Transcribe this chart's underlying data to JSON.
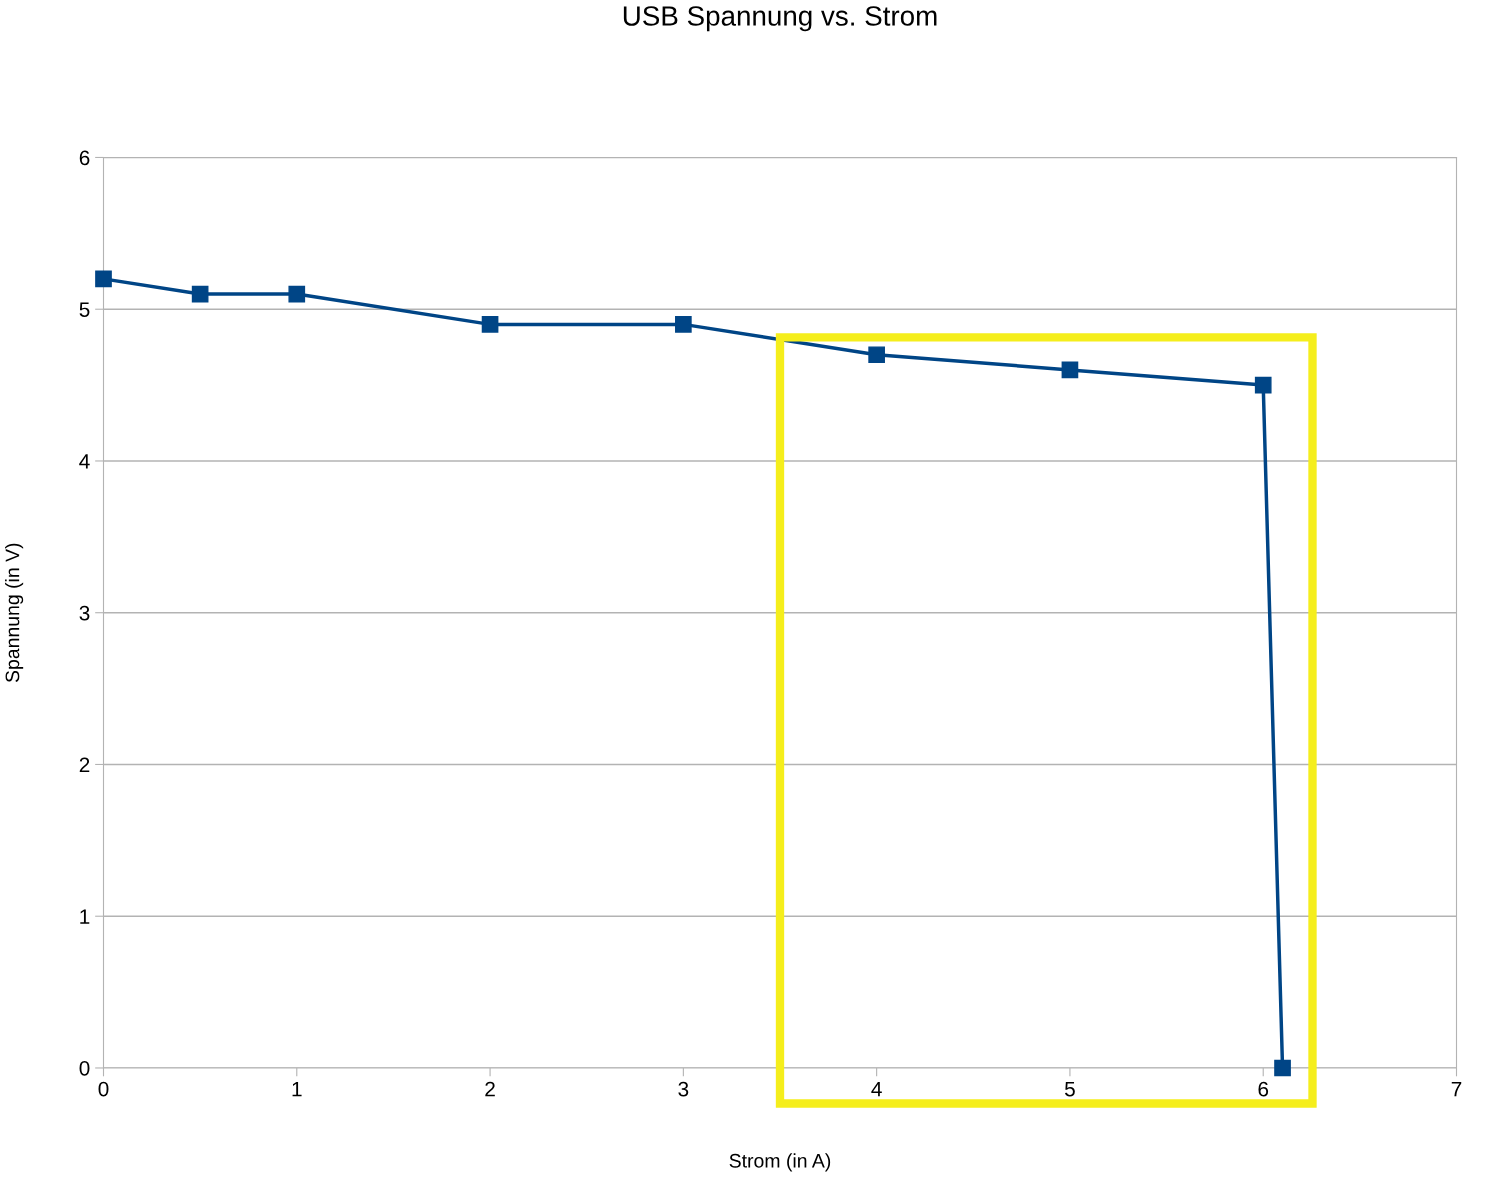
{
  "chart_data": {
    "type": "line",
    "title": "USB Spannung vs. Strom",
    "xlabel": "Strom (in A)",
    "ylabel": "Spannung (in V)",
    "x": [
      0,
      0.5,
      1,
      2,
      3,
      4,
      5,
      6,
      6.1
    ],
    "series": [
      {
        "color": "#004586",
        "values": [
          5.2,
          5.1,
          5.1,
          4.9,
          4.9,
          4.7,
          4.6,
          4.5,
          0
        ]
      }
    ],
    "xlim": [
      0,
      7
    ],
    "xticks": [
      0,
      1,
      2,
      3,
      4,
      5,
      6,
      7
    ],
    "ylim": [
      0,
      6
    ],
    "yticks": [
      0,
      1,
      2,
      3,
      4,
      5,
      6
    ],
    "grid": "y",
    "marker": "square",
    "line_style": "solid"
  }
}
